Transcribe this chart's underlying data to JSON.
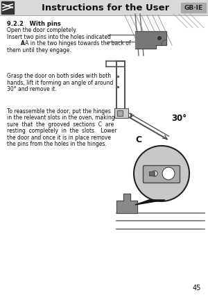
{
  "title": "Instructions for the User",
  "country_code": "GB·IE",
  "page_number": "45",
  "section": "9.2.2   With pins",
  "para1_line1": "Open the door completely.",
  "para1_line2": "Insert two pins into the holes indicated",
  "para1_line3": "           A in the two hinges towards the back of",
  "para1_line4": "them until they engage.",
  "para2_line1": "Grasp the door on both sides with both",
  "para2_line2": "hands, lift it forming an angle of around",
  "para2_line3": "30° and remove it.",
  "para3_line1": "To reassemble the door, put the hinges",
  "para3_line2": "in the relevant slots in the oven, making",
  "para3_line3": "sure  that  the  grooved  sections  C  are",
  "para3_line4": "resting  completely  in  the  slots.   Lower",
  "para3_line5": "the door and once it is in place remove",
  "para3_line6": "the pins from the holes in the hinges.",
  "bg_color": "#f2f2f2",
  "header_bg": "#d9d9d9",
  "body_bg": "#ffffff",
  "text_color": "#111111",
  "angle_label": "30°",
  "label_C": "C"
}
